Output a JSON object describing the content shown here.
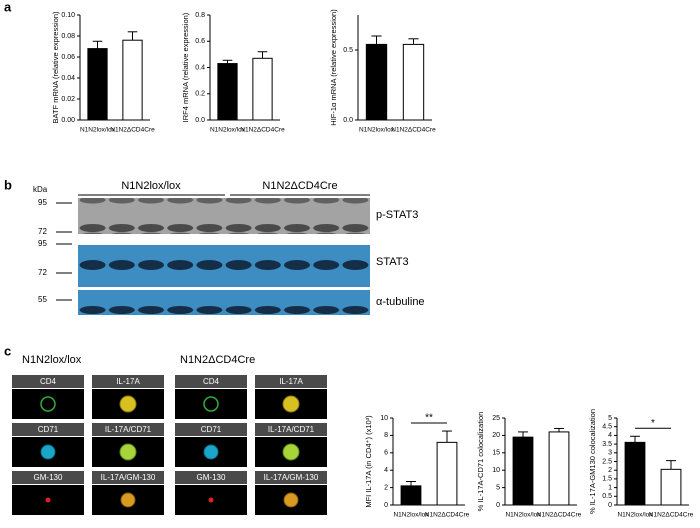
{
  "panel_labels": [
    "a",
    "b",
    "c"
  ],
  "chart_data": [
    {
      "type": "bar",
      "ylabel": "BATF mRNA (relative expression)",
      "categories": [
        "N1N2lox/lox",
        "N1N2ΔCD4Cre"
      ],
      "values": [
        0.068,
        0.076
      ],
      "errors": [
        0.007,
        0.008
      ],
      "colors": [
        "#000000",
        "#ffffff"
      ],
      "ylim": [
        0,
        0.1
      ],
      "yticks": [
        {
          "value": 0,
          "label": "0.00"
        },
        0.02,
        0.04,
        0.06,
        0.08,
        {
          "value": 0.1,
          "label": "0.10"
        }
      ]
    },
    {
      "type": "bar",
      "ylabel": "IRF4 mRNA (relative expression)",
      "categories": [
        "N1N2lox/lox",
        "N1N2ΔCD4Cre"
      ],
      "values": [
        0.43,
        0.47
      ],
      "errors": [
        0.025,
        0.05
      ],
      "colors": [
        "#000000",
        "#ffffff"
      ],
      "ylim": [
        0,
        0.8
      ],
      "yticks": [
        {
          "value": 0,
          "label": "0.0"
        },
        0.2,
        0.4,
        0.6,
        0.8
      ]
    },
    {
      "type": "bar",
      "ylabel": "HIF-1α mRNA (relative expression)",
      "categories": [
        "N1N2lox/lox",
        "N1N2ΔCD4Cre"
      ],
      "values": [
        0.54,
        0.54
      ],
      "errors": [
        0.06,
        0.04
      ],
      "colors": [
        "#000000",
        "#ffffff"
      ],
      "ylim": [
        0,
        0.75
      ],
      "yticks": [
        {
          "value": 0,
          "label": "0.0"
        },
        0.5
      ]
    },
    {
      "type": "bar",
      "ylabel": "MFI IL-17A (in CD4⁺) (x10³)",
      "categories": [
        "N1N2lox/lox",
        "N1N2ΔCD4Cre"
      ],
      "values": [
        2.2,
        7.2
      ],
      "errors": [
        0.5,
        1.3
      ],
      "colors": [
        "#000000",
        "#ffffff"
      ],
      "ylim": [
        0,
        10
      ],
      "yticks": [
        0,
        2,
        4,
        6,
        8,
        10
      ],
      "annotation": "**"
    },
    {
      "type": "bar",
      "ylabel": "% IL-17A-CD71 colocalization",
      "categories": [
        "N1N2lox/lox",
        "N1N2ΔCD4Cre"
      ],
      "values": [
        19.5,
        21
      ],
      "errors": [
        1.5,
        1
      ],
      "colors": [
        "#000000",
        "#ffffff"
      ],
      "ylim": [
        0,
        25
      ],
      "yticks": [
        0,
        5,
        10,
        15,
        20,
        25
      ]
    },
    {
      "type": "bar",
      "ylabel": "% IL-17A-GM130 colocalization",
      "categories": [
        "N1N2lox/lox",
        "N1N2ΔCD4Cre"
      ],
      "values": [
        3.6,
        2.05
      ],
      "errors": [
        0.35,
        0.5
      ],
      "colors": [
        "#000000",
        "#ffffff"
      ],
      "ylim": [
        0,
        5
      ],
      "yticks": [
        0,
        0.5,
        1,
        1.5,
        2,
        2.5,
        3,
        3.5,
        4,
        4.5,
        5
      ],
      "annotation": "*"
    }
  ],
  "blot": {
    "kda": "kDa",
    "markers": [
      "95",
      "72",
      "95",
      "72",
      "55"
    ],
    "groups": [
      "N1N2lox/lox",
      "N1N2ΔCD4Cre"
    ],
    "proteins": [
      "p-STAT3",
      "STAT3",
      "α-tubuline"
    ]
  },
  "imaging": {
    "groups": [
      "N1N2lox/lox",
      "N1N2ΔCD4Cre"
    ],
    "tiles": [
      [
        "CD4",
        "IL-17A"
      ],
      [
        "CD71",
        "IL-17A/CD71"
      ],
      [
        "GM-130",
        "IL-17A/GM-130"
      ]
    ]
  }
}
